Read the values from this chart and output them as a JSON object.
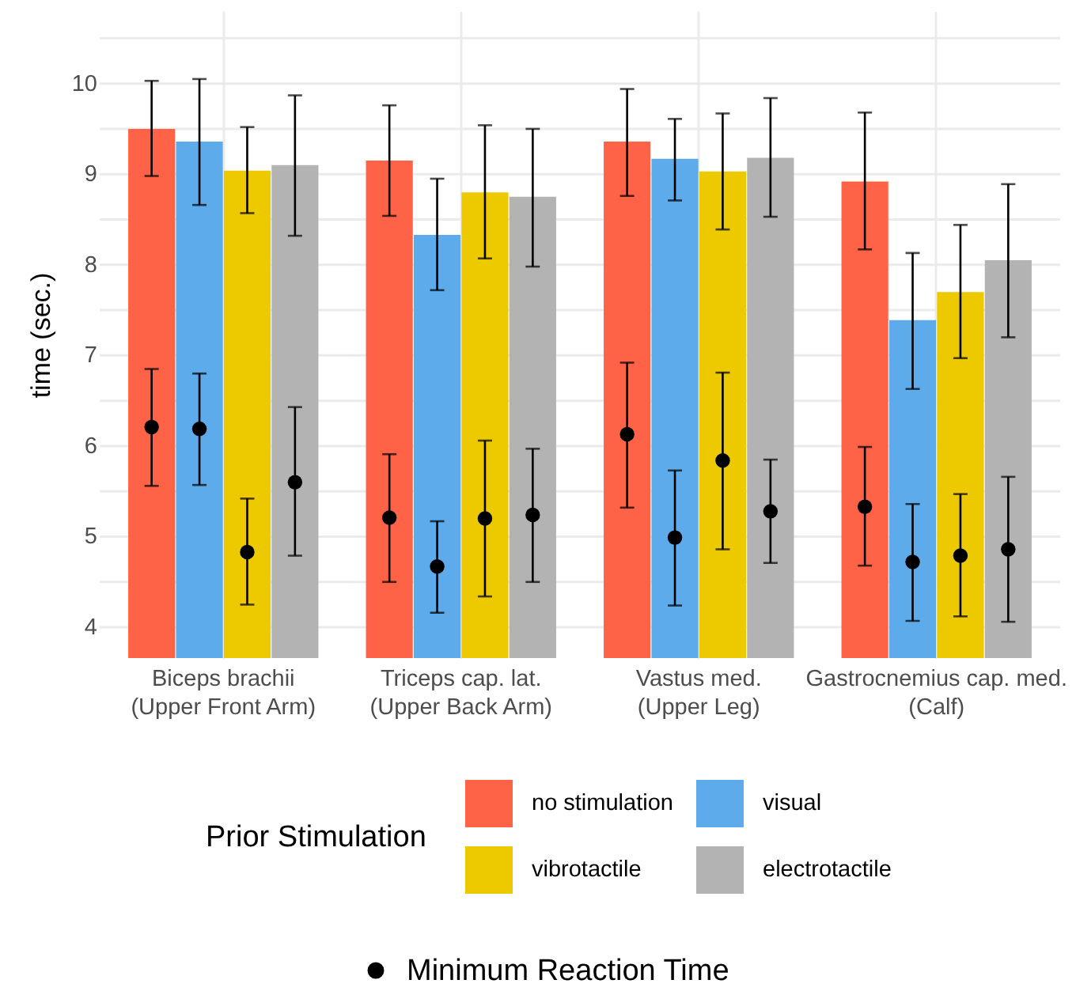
{
  "chart_data": {
    "type": "bar",
    "ylabel": "time (sec.)",
    "legend_title": "Prior Stimulation",
    "legend": "bottom",
    "grid": true,
    "categories": [
      "Biceps brachii\n(Upper Front Arm)",
      "Triceps cap. lat.\n(Upper Back Arm)",
      "Vastus med.\n(Upper Leg)",
      "Gastrocnemius cap. med.\n(Calf)"
    ],
    "ylim": [
      3.66,
      10.8
    ],
    "yticks": [
      4,
      {
        "value": 4.5,
        "label": null
      },
      5,
      {
        "value": 5.5,
        "label": null
      },
      6,
      {
        "value": 6.5,
        "label": null
      },
      7,
      {
        "value": 7.5,
        "label": null
      },
      8,
      {
        "value": 8.5,
        "label": null
      },
      9,
      {
        "value": 9.5,
        "label": null
      },
      10,
      {
        "value": 10.5,
        "label": null
      }
    ],
    "series": [
      {
        "name": "no stimulation",
        "color": "#ff6347",
        "values": [
          9.5,
          9.15,
          9.36,
          8.92
        ],
        "errors": [
          [
            8.98,
            10.03
          ],
          [
            8.54,
            9.76
          ],
          [
            8.76,
            9.94
          ],
          [
            8.17,
            9.68
          ]
        ]
      },
      {
        "name": "visual",
        "color": "#5dabeb",
        "values": [
          9.36,
          8.33,
          9.17,
          7.39
        ],
        "errors": [
          [
            8.66,
            10.05
          ],
          [
            7.72,
            8.95
          ],
          [
            8.71,
            9.61
          ],
          [
            6.63,
            8.13
          ]
        ]
      },
      {
        "name": "vibrotactile",
        "color": "#edc900",
        "values": [
          9.04,
          8.8,
          9.03,
          7.7
        ],
        "errors": [
          [
            8.57,
            9.52
          ],
          [
            8.07,
            9.54
          ],
          [
            8.39,
            9.67
          ],
          [
            6.97,
            8.44
          ]
        ]
      },
      {
        "name": "electrotactile",
        "color": "#b3b3b3",
        "values": [
          9.1,
          8.75,
          9.18,
          8.05
        ],
        "errors": [
          [
            8.32,
            9.87
          ],
          [
            7.98,
            9.5
          ],
          [
            8.53,
            9.84
          ],
          [
            7.2,
            8.89
          ]
        ]
      },
      {
        "name": "Minimum Reaction Time",
        "type": "scatter",
        "marker": "circle",
        "color": "#000000",
        "x": [
          "Biceps brachii\n(Upper Front Arm)",
          "Biceps brachii\n(Upper Front Arm)",
          "Biceps brachii\n(Upper Front Arm)",
          "Biceps brachii\n(Upper Front Arm)",
          "Triceps cap. lat.\n(Upper Back Arm)",
          "Triceps cap. lat.\n(Upper Back Arm)",
          "Triceps cap. lat.\n(Upper Back Arm)",
          "Triceps cap. lat.\n(Upper Back Arm)",
          "Vastus med.\n(Upper Leg)",
          "Vastus med.\n(Upper Leg)",
          "Vastus med.\n(Upper Leg)",
          "Vastus med.\n(Upper Leg)",
          "Gastrocnemius cap. med.\n(Calf)",
          "Gastrocnemius cap. med.\n(Calf)",
          "Gastrocnemius cap. med.\n(Calf)",
          "Gastrocnemius cap. med.\n(Calf)"
        ],
        "values": [
          6.21,
          6.19,
          4.83,
          5.6,
          5.21,
          4.67,
          5.2,
          5.24,
          6.13,
          4.99,
          5.84,
          5.28,
          5.33,
          4.72,
          4.79,
          4.86
        ],
        "errors": [
          [
            5.56,
            6.85
          ],
          [
            5.57,
            6.8
          ],
          [
            4.25,
            5.42
          ],
          [
            4.79,
            6.43
          ],
          [
            4.5,
            5.91
          ],
          [
            4.16,
            5.17
          ],
          [
            4.34,
            6.06
          ],
          [
            4.5,
            5.97
          ],
          [
            5.32,
            6.92
          ],
          [
            4.24,
            5.73
          ],
          [
            4.86,
            6.81
          ],
          [
            4.71,
            5.85
          ],
          [
            4.68,
            5.99
          ],
          [
            4.07,
            5.36
          ],
          [
            4.12,
            5.47
          ],
          [
            4.06,
            5.66
          ]
        ]
      }
    ]
  }
}
